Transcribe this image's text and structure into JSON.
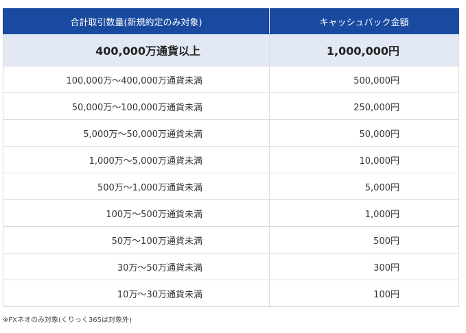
{
  "table": {
    "headers": {
      "volume": "合計取引数量(新規約定のみ対象)",
      "cashback": "キャッシュバック金額"
    },
    "rows": [
      {
        "volume": "400,000万通貨以上",
        "cashback": "1,000,000円"
      },
      {
        "volume": "100,000万〜400,000万通貨未満",
        "cashback": "500,000円"
      },
      {
        "volume": "50,000万〜100,000万通貨未満",
        "cashback": "250,000円"
      },
      {
        "volume": "5,000万〜50,000万通貨未満",
        "cashback": "50,000円"
      },
      {
        "volume": "1,000万〜5,000万通貨未満",
        "cashback": "10,000円"
      },
      {
        "volume": "500万〜1,000万通貨未満",
        "cashback": "5,000円"
      },
      {
        "volume": "100万〜500万通貨未満",
        "cashback": "1,000円"
      },
      {
        "volume": "50万〜100万通貨未満",
        "cashback": "500円"
      },
      {
        "volume": "30万〜50万通貨未満",
        "cashback": "300円"
      },
      {
        "volume": "10万〜30万通貨未満",
        "cashback": "100円"
      }
    ]
  },
  "footnote": "※FXネオのみ対象(くりっく365は対象外)",
  "colors": {
    "header_bg": "#1a4aa0",
    "highlight_bg": "#e3e9f4",
    "border": "#dcdcdc"
  }
}
